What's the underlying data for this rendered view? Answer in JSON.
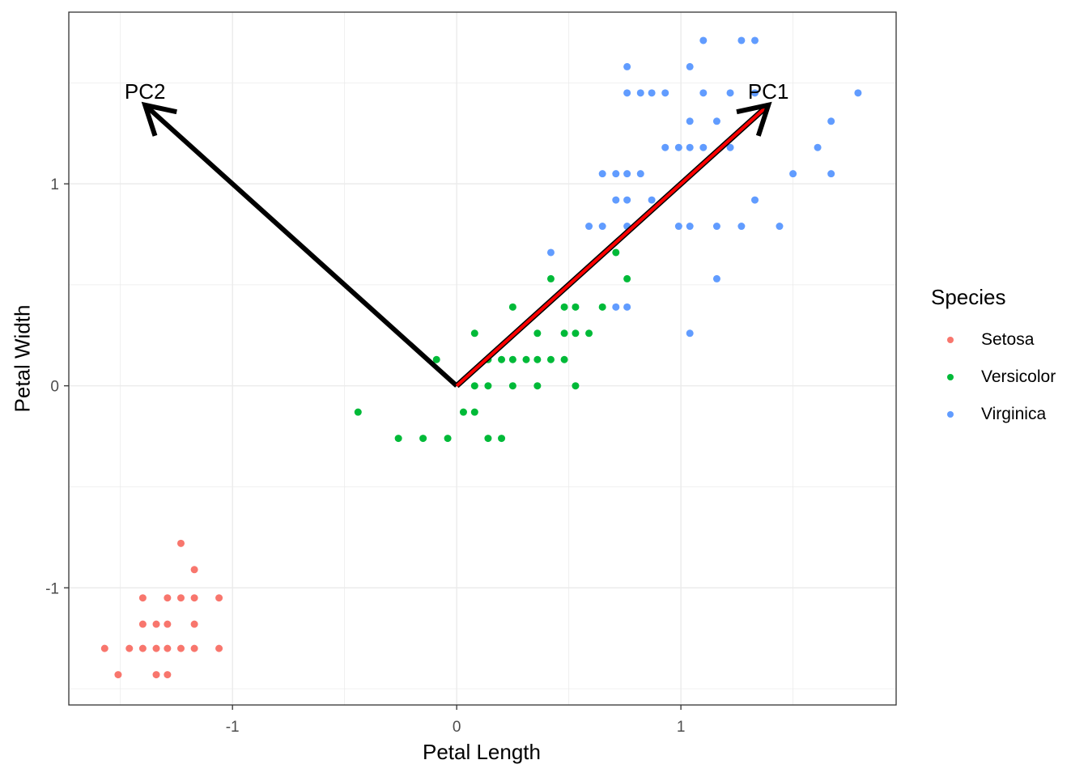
{
  "chart_data": {
    "type": "scatter",
    "title": "",
    "xlabel": "Petal Length",
    "ylabel": "Petal Width",
    "xlim": [
      -1.73,
      1.96
    ],
    "ylim": [
      -1.58,
      1.85
    ],
    "x_ticks": [
      -1,
      0,
      1
    ],
    "y_ticks": [
      -1,
      0,
      1
    ],
    "grid": true,
    "legend": {
      "title": "Species",
      "position": "right"
    },
    "series": [
      {
        "name": "Setosa",
        "color": "#F8766D",
        "points": [
          [
            -1.23,
            -0.78
          ],
          [
            -1.17,
            -0.91
          ],
          [
            -1.4,
            -1.05
          ],
          [
            -1.29,
            -1.05
          ],
          [
            -1.23,
            -1.05
          ],
          [
            -1.17,
            -1.05
          ],
          [
            -1.06,
            -1.05
          ],
          [
            -1.4,
            -1.18
          ],
          [
            -1.34,
            -1.18
          ],
          [
            -1.29,
            -1.18
          ],
          [
            -1.17,
            -1.18
          ],
          [
            -1.57,
            -1.3
          ],
          [
            -1.46,
            -1.3
          ],
          [
            -1.4,
            -1.3
          ],
          [
            -1.34,
            -1.3
          ],
          [
            -1.29,
            -1.3
          ],
          [
            -1.23,
            -1.3
          ],
          [
            -1.17,
            -1.3
          ],
          [
            -1.06,
            -1.3
          ],
          [
            -1.51,
            -1.43
          ],
          [
            -1.34,
            -1.43
          ],
          [
            -1.29,
            -1.43
          ]
        ]
      },
      {
        "name": "Versicolor",
        "color": "#00BA38",
        "points": [
          [
            0.71,
            0.66
          ],
          [
            0.42,
            0.53
          ],
          [
            0.76,
            0.53
          ],
          [
            0.25,
            0.39
          ],
          [
            0.48,
            0.39
          ],
          [
            0.53,
            0.39
          ],
          [
            0.65,
            0.39
          ],
          [
            0.08,
            0.26
          ],
          [
            0.36,
            0.26
          ],
          [
            0.48,
            0.26
          ],
          [
            0.53,
            0.26
          ],
          [
            0.59,
            0.26
          ],
          [
            -0.09,
            0.13
          ],
          [
            0.14,
            0.13
          ],
          [
            0.2,
            0.13
          ],
          [
            0.25,
            0.13
          ],
          [
            0.31,
            0.13
          ],
          [
            0.36,
            0.13
          ],
          [
            0.42,
            0.13
          ],
          [
            0.48,
            0.13
          ],
          [
            0.08,
            0.0
          ],
          [
            0.14,
            0.0
          ],
          [
            0.25,
            0.0
          ],
          [
            0.36,
            0.0
          ],
          [
            0.53,
            0.0
          ],
          [
            -0.44,
            -0.13
          ],
          [
            0.03,
            -0.13
          ],
          [
            0.08,
            -0.13
          ],
          [
            -0.26,
            -0.26
          ],
          [
            -0.15,
            -0.26
          ],
          [
            -0.04,
            -0.26
          ],
          [
            0.14,
            -0.26
          ],
          [
            0.2,
            -0.26
          ]
        ]
      },
      {
        "name": "Virginica",
        "color": "#619CFF",
        "points": [
          [
            1.1,
            1.71
          ],
          [
            1.27,
            1.71
          ],
          [
            1.33,
            1.71
          ],
          [
            0.76,
            1.58
          ],
          [
            1.04,
            1.58
          ],
          [
            0.76,
            1.45
          ],
          [
            0.82,
            1.45
          ],
          [
            0.87,
            1.45
          ],
          [
            0.93,
            1.45
          ],
          [
            1.1,
            1.45
          ],
          [
            1.22,
            1.45
          ],
          [
            1.33,
            1.45
          ],
          [
            1.79,
            1.45
          ],
          [
            1.04,
            1.31
          ],
          [
            1.16,
            1.31
          ],
          [
            1.67,
            1.31
          ],
          [
            0.93,
            1.18
          ],
          [
            0.99,
            1.18
          ],
          [
            1.04,
            1.18
          ],
          [
            1.1,
            1.18
          ],
          [
            1.22,
            1.18
          ],
          [
            1.61,
            1.18
          ],
          [
            0.65,
            1.05
          ],
          [
            0.71,
            1.05
          ],
          [
            0.76,
            1.05
          ],
          [
            0.82,
            1.05
          ],
          [
            1.5,
            1.05
          ],
          [
            1.67,
            1.05
          ],
          [
            0.71,
            0.92
          ],
          [
            0.76,
            0.92
          ],
          [
            0.87,
            0.92
          ],
          [
            1.33,
            0.92
          ],
          [
            0.59,
            0.79
          ],
          [
            0.65,
            0.79
          ],
          [
            0.76,
            0.79
          ],
          [
            0.99,
            0.79
          ],
          [
            1.04,
            0.79
          ],
          [
            1.16,
            0.79
          ],
          [
            1.27,
            0.79
          ],
          [
            1.44,
            0.79
          ],
          [
            0.42,
            0.66
          ],
          [
            1.16,
            0.53
          ],
          [
            0.71,
            0.39
          ],
          [
            0.76,
            0.39
          ],
          [
            1.04,
            0.26
          ]
        ]
      }
    ],
    "annotations": [
      {
        "type": "arrow",
        "label": "PC1",
        "from": [
          0,
          0
        ],
        "to": [
          1.39,
          1.39
        ],
        "color": "#FF0000",
        "outline": "#000000"
      },
      {
        "type": "arrow",
        "label": "PC2",
        "from": [
          0,
          0
        ],
        "to": [
          -1.39,
          1.39
        ],
        "color": "#000000"
      }
    ]
  },
  "axes": {
    "xlabel": "Petal Length",
    "ylabel": "Petal Width"
  },
  "legend": {
    "title": "Species",
    "items": [
      {
        "label": "Setosa",
        "color": "#F8766D"
      },
      {
        "label": "Versicolor",
        "color": "#00BA38"
      },
      {
        "label": "Virginica",
        "color": "#619CFF"
      }
    ]
  }
}
